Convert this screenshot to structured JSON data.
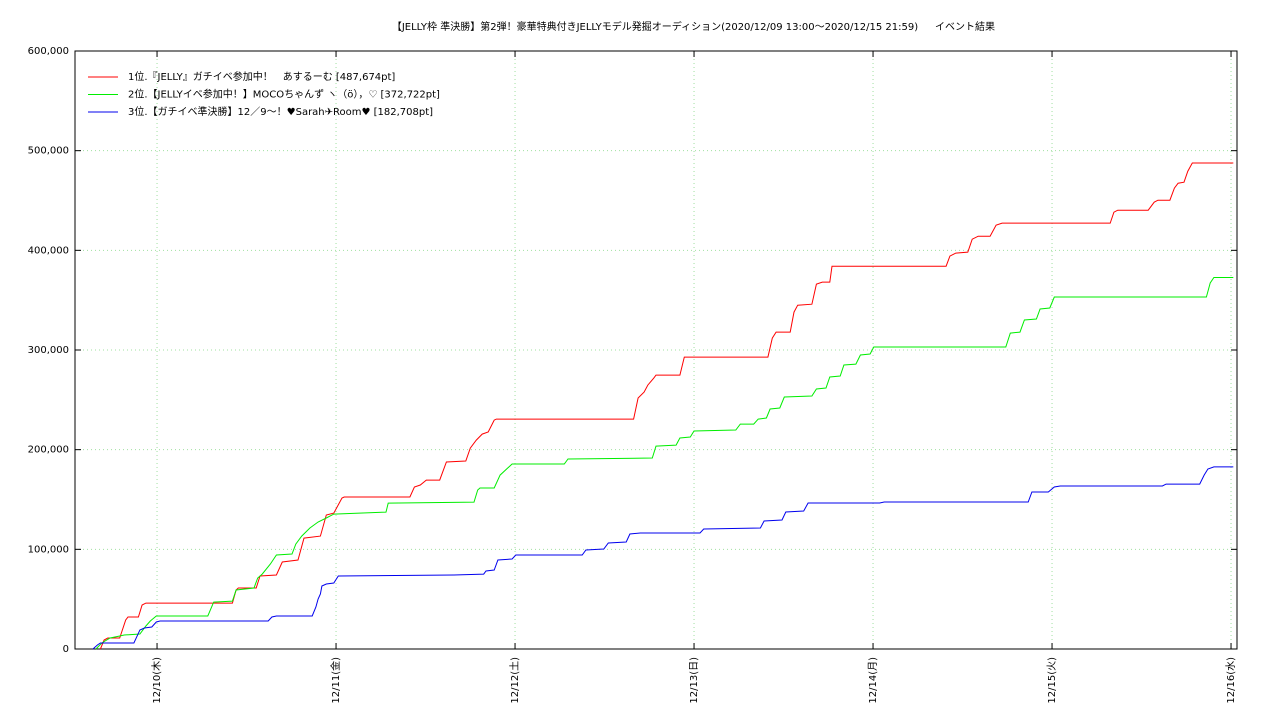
{
  "chart_data": {
    "type": "line",
    "title": "【JELLY枠 準決勝】第2弾！豪華特典付きJELLYモデル発掘オーディション(2020/12/09 13:00〜2020/12/15 21:59)",
    "subtitle": "イベント結果",
    "xlim": [
      -11,
      144.8
    ],
    "xticks": [
      {
        "value": 0,
        "label": "12/10(木)"
      },
      {
        "value": 24,
        "label": "12/11(金)"
      },
      {
        "value": 48,
        "label": "12/12(土)"
      },
      {
        "value": 72,
        "label": "12/13(日)"
      },
      {
        "value": 96,
        "label": "12/14(月)"
      },
      {
        "value": 120,
        "label": "12/15(火)"
      },
      {
        "value": 144,
        "label": "12/16(水)"
      }
    ],
    "ylim": [
      0,
      600000
    ],
    "yticks": [
      0,
      {
        "value": 100000,
        "label": "100,000"
      },
      {
        "value": 200000,
        "label": "200,000"
      },
      {
        "value": 300000,
        "label": "300,000"
      },
      {
        "value": 400000,
        "label": "400,000"
      },
      {
        "value": 500000,
        "label": "500,000"
      },
      {
        "value": 600000,
        "label": "600,000"
      }
    ],
    "grid": true,
    "legend": "top-left",
    "series": [
      {
        "name": "1位.『JELLY』ガチイベ参加中！　あするーむ [487,674pt]",
        "color": "#ff0000",
        "x": [
          -7.6,
          -7.1,
          -6.6,
          -5.0,
          -4.2,
          -3.9,
          -2.5,
          -2.0,
          -1.5,
          10.1,
          10.6,
          10.9,
          13.3,
          13.8,
          16.0,
          16.8,
          18.9,
          19.7,
          21.9,
          22.7,
          23.7,
          24.8,
          25.1,
          33.9,
          34.5,
          35.3,
          36.1,
          37.9,
          38.8,
          41.4,
          42.0,
          42.8,
          43.6,
          44.4,
          45.2,
          45.5,
          63.9,
          64.5,
          65.3,
          65.8,
          66.6,
          66.9,
          70.1,
          70.7,
          81.9,
          82.5,
          83.0,
          84.9,
          85.4,
          85.9,
          87.8,
          88.4,
          89.2,
          90.2,
          90.5,
          105.8,
          106.3,
          107.1,
          108.7,
          109.3,
          110.1,
          111.7,
          112.5,
          113.3,
          127.8,
          128.3,
          128.8,
          132.9,
          133.7,
          134.2,
          135.8,
          136.4,
          136.9,
          137.7,
          138.2,
          138.8,
          144.3
        ],
        "values": [
          0,
          9000,
          11000,
          11000,
          29100,
          32100,
          32100,
          44100,
          46100,
          46100,
          59200,
          61200,
          61200,
          73200,
          74200,
          87300,
          89300,
          111300,
          113300,
          134400,
          136400,
          151500,
          152500,
          152500,
          162500,
          164500,
          169500,
          169500,
          187600,
          188600,
          201600,
          209600,
          215600,
          217700,
          229700,
          230700,
          230700,
          251800,
          257800,
          264800,
          271800,
          274800,
          274800,
          292900,
          292900,
          311900,
          318000,
          318000,
          338000,
          345000,
          346000,
          366100,
          368100,
          368100,
          384100,
          384100,
          394200,
          397200,
          398200,
          411200,
          414200,
          414200,
          425300,
          427300,
          427300,
          438300,
          440300,
          440300,
          448300,
          450300,
          450300,
          462400,
          467400,
          468400,
          479400,
          487674,
          487674
        ]
      },
      {
        "name": "2位.【JELLYイベ参加中！】MOCOちゃんず ヽ（ö），♡ [372,722pt]",
        "color": "#00ee00",
        "x": [
          -8.2,
          -7.4,
          -6.3,
          -5.0,
          -4.4,
          -2.3,
          -1.5,
          -0.9,
          -0.1,
          6.8,
          7.6,
          10.1,
          10.6,
          13.0,
          13.5,
          14.1,
          15.2,
          16.0,
          18.1,
          18.6,
          19.4,
          20.5,
          21.6,
          22.7,
          23.7,
          30.7,
          31.0,
          42.5,
          43.0,
          43.3,
          45.2,
          46.0,
          47.6,
          54.6,
          55.1,
          66.4,
          66.9,
          69.6,
          70.1,
          71.5,
          72.0,
          77.6,
          78.2,
          80.0,
          80.6,
          81.7,
          82.2,
          83.5,
          84.1,
          87.8,
          88.4,
          89.7,
          90.2,
          91.6,
          92.1,
          93.7,
          94.3,
          95.6,
          96.1,
          113.8,
          114.4,
          115.7,
          116.3,
          117.9,
          118.4,
          119.7,
          120.3,
          140.7,
          141.2,
          141.7,
          144.3
        ],
        "values": [
          0,
          6000,
          11000,
          13000,
          14000,
          15000,
          23100,
          28100,
          33100,
          33100,
          47100,
          48100,
          59200,
          61200,
          71200,
          75200,
          85300,
          94300,
          95300,
          105300,
          113300,
          121400,
          127400,
          131400,
          135400,
          137400,
          146400,
          147400,
          159500,
          161500,
          161500,
          174500,
          185600,
          185600,
          190600,
          191600,
          203600,
          204600,
          211700,
          212700,
          218700,
          219700,
          225700,
          225700,
          230700,
          231800,
          240800,
          241800,
          252800,
          253800,
          260900,
          261900,
          272900,
          273900,
          284900,
          285900,
          295000,
          296000,
          303000,
          303000,
          317000,
          318000,
          330100,
          331100,
          341100,
          342100,
          353200,
          353200,
          367200,
          372722,
          372722
        ]
      },
      {
        "name": "3位.【ガチイベ準決勝】12／9〜！♥Sarah✈Room♥ [182,708pt]",
        "color": "#0000ee",
        "x": [
          -8.6,
          -8.0,
          -7.6,
          -3.1,
          -2.3,
          -1.7,
          -0.7,
          -0.1,
          0.4,
          14.9,
          15.4,
          16.0,
          20.8,
          21.3,
          21.6,
          21.9,
          22.1,
          22.7,
          23.7,
          24.3,
          39.8,
          43.8,
          44.1,
          45.2,
          45.7,
          47.6,
          48.1,
          57.0,
          57.5,
          59.9,
          60.5,
          62.9,
          63.4,
          64.8,
          72.8,
          73.3,
          80.9,
          81.4,
          83.8,
          84.3,
          86.7,
          87.3,
          96.9,
          97.5,
          116.8,
          117.3,
          119.5,
          120.3,
          121.1,
          134.8,
          135.3,
          139.8,
          140.4,
          140.9,
          141.7,
          144.3
        ],
        "values": [
          0,
          4000,
          6000,
          6000,
          19100,
          21100,
          22100,
          27100,
          28100,
          28100,
          32100,
          33100,
          33100,
          42100,
          50200,
          55200,
          63200,
          65200,
          66200,
          73200,
          74200,
          75200,
          78300,
          79300,
          89300,
          90300,
          94300,
          94300,
          99300,
          100300,
          106400,
          107400,
          115400,
          116400,
          116400,
          120400,
          121400,
          128400,
          129400,
          137500,
          138500,
          146500,
          146500,
          147500,
          147500,
          157500,
          157500,
          162500,
          163500,
          163500,
          165500,
          165500,
          174600,
          180600,
          182708,
          182708
        ]
      }
    ]
  }
}
